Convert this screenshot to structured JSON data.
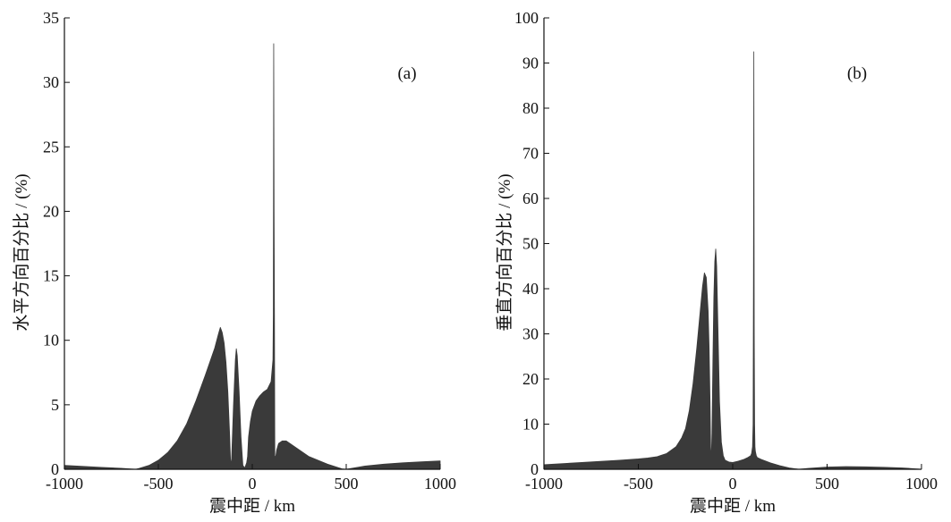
{
  "chart_data": [
    {
      "type": "area",
      "panel_label": "(a)",
      "xlabel": "震中距 / km",
      "ylabel": "水平方向百分比 / (%)",
      "xlim": [
        -1000,
        1000
      ],
      "ylim": [
        0,
        35
      ],
      "xticks": [
        -1000,
        -500,
        0,
        500,
        1000
      ],
      "yticks": [
        0,
        5,
        10,
        15,
        20,
        25,
        30,
        35
      ],
      "grid": false,
      "fill_color": "#3a3a3a",
      "x": [
        -1000,
        -800,
        -700,
        -620,
        -600,
        -550,
        -500,
        -450,
        -400,
        -350,
        -300,
        -250,
        -200,
        -180,
        -170,
        -160,
        -150,
        -140,
        -130,
        -120,
        -115,
        -110,
        -100,
        -90,
        -85,
        -80,
        -70,
        -60,
        -50,
        -40,
        -30,
        -25,
        -20,
        -10,
        0,
        20,
        40,
        60,
        80,
        100,
        110,
        112,
        114,
        116,
        118,
        120,
        125,
        130,
        140,
        160,
        180,
        200,
        250,
        300,
        400,
        480,
        500,
        600,
        700,
        800,
        900,
        1000
      ],
      "y": [
        0.3,
        0.15,
        0.08,
        0.0,
        0.08,
        0.3,
        0.7,
        1.3,
        2.2,
        3.5,
        5.3,
        7.3,
        9.4,
        10.5,
        11.0,
        10.6,
        9.8,
        8.3,
        6.0,
        2.5,
        0.3,
        0.8,
        5.0,
        8.5,
        9.35,
        8.8,
        6.0,
        2.5,
        0.3,
        0.1,
        0.5,
        1.0,
        2.5,
        3.7,
        4.5,
        5.3,
        5.7,
        6.0,
        6.2,
        6.8,
        8.5,
        12.0,
        33.0,
        20.0,
        12.0,
        1.0,
        1.0,
        1.5,
        2.0,
        2.2,
        2.2,
        2.0,
        1.5,
        1.0,
        0.4,
        0.02,
        0.0,
        0.25,
        0.4,
        0.5,
        0.58,
        0.65
      ]
    },
    {
      "type": "area",
      "panel_label": "(b)",
      "xlabel": "震中距 / km",
      "ylabel": "垂直方向百分比 / (%)",
      "xlim": [
        -1000,
        1000
      ],
      "ylim": [
        0,
        100
      ],
      "xticks": [
        -1000,
        -500,
        0,
        500,
        1000
      ],
      "yticks": [
        0,
        10,
        20,
        30,
        40,
        50,
        60,
        70,
        80,
        90,
        100
      ],
      "grid": false,
      "fill_color": "#3a3a3a",
      "x": [
        -1000,
        -800,
        -600,
        -500,
        -450,
        -400,
        -350,
        -300,
        -270,
        -250,
        -230,
        -210,
        -190,
        -170,
        -160,
        -150,
        -140,
        -130,
        -125,
        -120,
        -117,
        -114,
        -110,
        -105,
        -100,
        -95,
        -90,
        -85,
        -80,
        -70,
        -60,
        -50,
        -40,
        -20,
        0,
        30,
        60,
        80,
        95,
        100,
        105,
        108,
        110,
        112,
        114,
        116,
        118,
        120,
        125,
        130,
        150,
        200,
        250,
        300,
        350,
        400,
        500,
        600,
        700,
        800,
        900,
        1000
      ],
      "y": [
        1.0,
        1.5,
        2.0,
        2.3,
        2.5,
        2.8,
        3.5,
        5.0,
        7.0,
        9.0,
        13.0,
        19.0,
        27.0,
        36.0,
        40.5,
        43.5,
        42.5,
        35.0,
        27.0,
        15.0,
        5.0,
        1.5,
        8.0,
        24.0,
        38.0,
        46.0,
        48.8,
        45.0,
        35.0,
        15.0,
        6.0,
        3.0,
        2.0,
        1.6,
        1.5,
        1.8,
        2.2,
        2.6,
        3.0,
        3.5,
        5.0,
        10.0,
        42.0,
        92.5,
        30.0,
        10.0,
        5.0,
        4.0,
        3.0,
        2.6,
        2.2,
        1.4,
        0.8,
        0.3,
        0.0,
        0.2,
        0.5,
        0.6,
        0.55,
        0.45,
        0.3,
        0.0
      ]
    }
  ]
}
